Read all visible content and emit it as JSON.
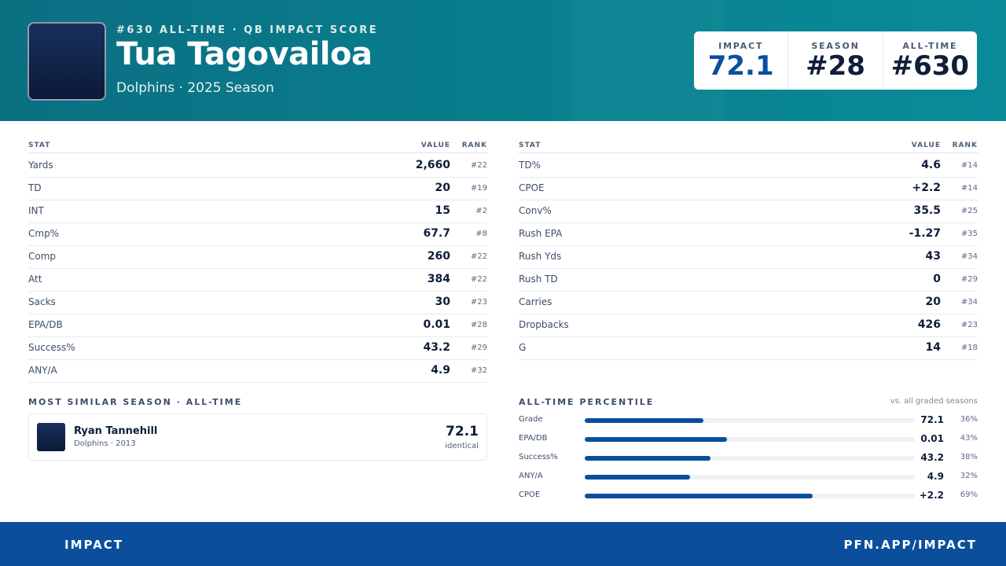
{
  "header": {
    "supertitle": "#630 ALL-TIME · QB IMPACT SCORE",
    "name": "Tua Tagovailoa",
    "subtitle": "Dolphins · 2025 Season",
    "scores": [
      {
        "label": "IMPACT",
        "value": "72.1"
      },
      {
        "label": "SEASON",
        "value": "#28"
      },
      {
        "label": "ALL-TIME",
        "value": "#630"
      }
    ]
  },
  "stats_left": {
    "columns": [
      "STAT",
      "VALUE",
      "RANK"
    ],
    "rows": [
      [
        "Yards",
        "2,660",
        "#22"
      ],
      [
        "TD",
        "20",
        "#19"
      ],
      [
        "INT",
        "15",
        "#2"
      ],
      [
        "Cmp%",
        "67.7",
        "#8"
      ],
      [
        "Comp",
        "260",
        "#22"
      ],
      [
        "Att",
        "384",
        "#22"
      ],
      [
        "Sacks",
        "30",
        "#23"
      ],
      [
        "EPA/DB",
        "0.01",
        "#28"
      ],
      [
        "Success%",
        "43.2",
        "#29"
      ],
      [
        "ANY/A",
        "4.9",
        "#32"
      ]
    ]
  },
  "stats_right": {
    "columns": [
      "STAT",
      "VALUE",
      "RANK"
    ],
    "rows": [
      [
        "TD%",
        "4.6",
        "#14"
      ],
      [
        "CPOE",
        "+2.2",
        "#14"
      ],
      [
        "Conv%",
        "35.5",
        "#25"
      ],
      [
        "Rush EPA",
        "-1.27",
        "#35"
      ],
      [
        "Rush Yds",
        "43",
        "#34"
      ],
      [
        "Rush TD",
        "0",
        "#29"
      ],
      [
        "Carries",
        "20",
        "#34"
      ],
      [
        "Dropbacks",
        "426",
        "#23"
      ],
      [
        "G",
        "14",
        "#18"
      ]
    ]
  },
  "similar": {
    "title": "MOST SIMILAR SEASON · ALL-TIME",
    "name": "Ryan Tannehill",
    "detail": "Dolphins · 2013",
    "score": "72.1",
    "note": "identical"
  },
  "percentile": {
    "title": "ALL-TIME PERCENTILE",
    "note": "vs. all graded seasons",
    "rows": [
      {
        "label": "Grade",
        "value": "72.1",
        "pct": {
          "value": 36,
          "label": "36%"
        }
      },
      {
        "label": "EPA/DB",
        "value": "0.01",
        "pct": {
          "value": 43,
          "label": "43%"
        }
      },
      {
        "label": "Success%",
        "value": "43.2",
        "pct": {
          "value": 38,
          "label": "38%"
        }
      },
      {
        "label": "ANY/A",
        "value": "4.9",
        "pct": {
          "value": 32,
          "label": "32%"
        }
      },
      {
        "label": "CPOE",
        "value": "+2.2",
        "pct": {
          "value": 69,
          "label": "69%"
        }
      }
    ]
  },
  "footer": {
    "left": "IMPACT",
    "right": "PFN.APP/IMPACT"
  }
}
